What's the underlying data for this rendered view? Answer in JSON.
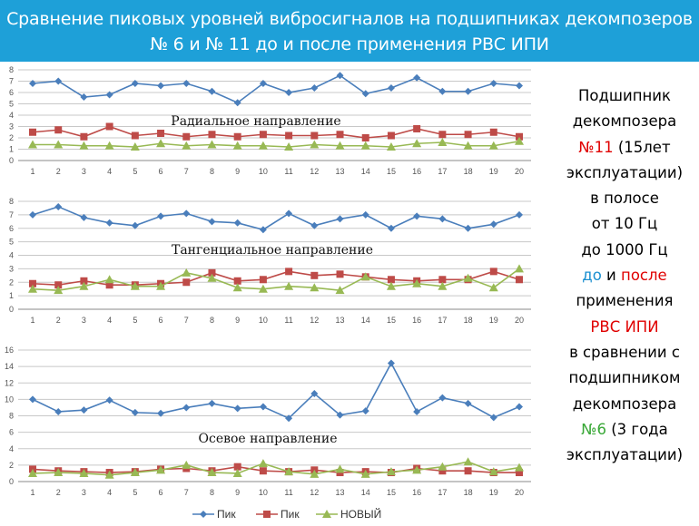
{
  "header": {
    "title_line1": "Сравнение пиковых уровней вибросигналов на подшипниках декомпозеров",
    "title_line2": "№ 6 и № 11 до и после применения РВС ИПИ"
  },
  "side_text": {
    "l1": "Подшипник",
    "l2": "декомпозера",
    "l3a": "№11",
    "l3b": " (15лет",
    "l4": "эксплуатации)",
    "l5": "в полосе",
    "l6": "от 10 Гц",
    "l7": "до 1000 Гц",
    "l8a": "до",
    "l8b": " и ",
    "l8c": "после",
    "l9": "применения",
    "l10": "РВС ИПИ",
    "l11": "в сравнении с",
    "l12": "подшипником",
    "l13": "декомпозера",
    "l14a": "№6",
    "l14b": " (3 года",
    "l15": "эксплуатации)"
  },
  "colors": {
    "header_bg": "#1ea0d8",
    "series_blue": "#4a7ebb",
    "series_red": "#be4b48",
    "series_green": "#98b954",
    "text_red": "#e00000",
    "text_blue": "#1a8fd0",
    "text_green": "#3aa838"
  },
  "chart_data": [
    {
      "type": "line",
      "title": "Радиальное направление",
      "x": [
        1,
        2,
        3,
        4,
        5,
        6,
        7,
        8,
        9,
        10,
        11,
        12,
        13,
        14,
        15,
        16,
        17,
        18,
        19,
        20
      ],
      "ylim": [
        0,
        8
      ],
      "yticks": [
        0,
        1,
        2,
        3,
        4,
        5,
        6,
        7,
        8
      ],
      "grid": true,
      "series": [
        {
          "name": "Пик",
          "marker": "diamond",
          "values": [
            6.8,
            7.0,
            5.6,
            5.8,
            6.8,
            6.6,
            6.8,
            6.1,
            5.1,
            6.8,
            6.0,
            6.4,
            7.5,
            5.9,
            6.4,
            7.3,
            6.1,
            6.1,
            6.8,
            6.6
          ]
        },
        {
          "name": "Пик",
          "marker": "square",
          "values": [
            2.5,
            2.7,
            2.1,
            3.0,
            2.2,
            2.4,
            2.1,
            2.3,
            2.1,
            2.3,
            2.2,
            2.2,
            2.3,
            2.0,
            2.2,
            2.8,
            2.3,
            2.3,
            2.5,
            2.1
          ]
        },
        {
          "name": "НОВЫЙ",
          "marker": "triangle",
          "values": [
            1.4,
            1.4,
            1.3,
            1.3,
            1.2,
            1.5,
            1.3,
            1.4,
            1.3,
            1.3,
            1.2,
            1.4,
            1.3,
            1.3,
            1.2,
            1.5,
            1.6,
            1.3,
            1.3,
            1.7
          ]
        }
      ]
    },
    {
      "type": "line",
      "title": "Тангенциальное направление",
      "x": [
        1,
        2,
        3,
        4,
        5,
        6,
        7,
        8,
        9,
        10,
        11,
        12,
        13,
        14,
        15,
        16,
        17,
        18,
        19,
        20
      ],
      "ylim": [
        0,
        8
      ],
      "yticks": [
        0,
        1,
        2,
        3,
        4,
        5,
        6,
        7,
        8
      ],
      "grid": true,
      "series": [
        {
          "name": "Пик",
          "marker": "diamond",
          "values": [
            7.0,
            7.6,
            6.8,
            6.4,
            6.2,
            6.9,
            7.1,
            6.5,
            6.4,
            5.9,
            7.1,
            6.2,
            6.7,
            7.0,
            6.0,
            6.9,
            6.7,
            6.0,
            6.3,
            7.0
          ]
        },
        {
          "name": "Пик",
          "marker": "square",
          "values": [
            1.9,
            1.8,
            2.1,
            1.8,
            1.8,
            1.9,
            2.0,
            2.7,
            2.1,
            2.2,
            2.8,
            2.5,
            2.6,
            2.4,
            2.2,
            2.1,
            2.2,
            2.2,
            2.8,
            2.2
          ]
        },
        {
          "name": "НОВЫЙ",
          "marker": "triangle",
          "values": [
            1.5,
            1.4,
            1.7,
            2.2,
            1.7,
            1.7,
            2.7,
            2.3,
            1.6,
            1.5,
            1.7,
            1.6,
            1.4,
            2.4,
            1.7,
            1.9,
            1.7,
            2.3,
            1.6,
            3.0
          ]
        }
      ]
    },
    {
      "type": "line",
      "title": "Осевое направление",
      "x": [
        1,
        2,
        3,
        4,
        5,
        6,
        7,
        8,
        9,
        10,
        11,
        12,
        13,
        14,
        15,
        16,
        17,
        18,
        19,
        20
      ],
      "ylim": [
        0,
        16
      ],
      "yticks": [
        0,
        2,
        4,
        6,
        8,
        10,
        12,
        14,
        16
      ],
      "grid": true,
      "series": [
        {
          "name": "Пик",
          "marker": "diamond",
          "values": [
            10.0,
            8.5,
            8.7,
            9.9,
            8.4,
            8.3,
            9.0,
            9.5,
            8.9,
            9.1,
            7.7,
            10.7,
            8.1,
            8.6,
            14.4,
            8.5,
            10.2,
            9.5,
            7.8,
            9.1
          ]
        },
        {
          "name": "Пик",
          "marker": "square",
          "values": [
            1.5,
            1.3,
            1.2,
            1.1,
            1.2,
            1.5,
            1.6,
            1.3,
            1.8,
            1.3,
            1.2,
            1.4,
            1.1,
            1.2,
            1.1,
            1.6,
            1.3,
            1.3,
            1.1,
            1.1
          ]
        },
        {
          "name": "НОВЫЙ",
          "marker": "triangle",
          "values": [
            1.0,
            1.1,
            1.0,
            0.8,
            1.1,
            1.4,
            2.0,
            1.1,
            1.0,
            2.2,
            1.2,
            0.9,
            1.5,
            0.9,
            1.2,
            1.4,
            1.8,
            2.4,
            1.2,
            1.7
          ]
        }
      ]
    }
  ],
  "legend": {
    "position": "bottom",
    "items": [
      {
        "label": "Пик",
        "marker": "diamond",
        "color": "#4a7ebb"
      },
      {
        "label": "Пик",
        "marker": "square",
        "color": "#be4b48"
      },
      {
        "label": "НОВЫЙ",
        "marker": "triangle",
        "color": "#98b954"
      }
    ]
  }
}
